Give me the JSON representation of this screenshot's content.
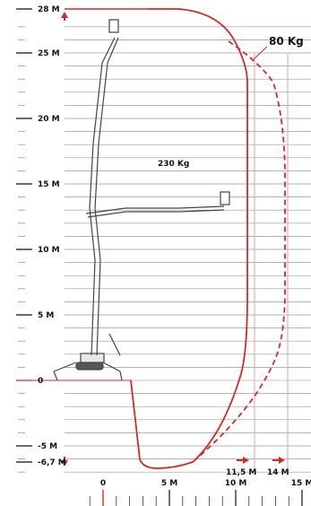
{
  "chart_data": {
    "type": "diagram",
    "y_ticks": [
      {
        "label": "28 M",
        "value": 28,
        "red_arrow": "up"
      },
      {
        "label": "25 M",
        "value": 25
      },
      {
        "label": "20 M",
        "value": 20
      },
      {
        "label": "15 M",
        "value": 15
      },
      {
        "label": "10 M",
        "value": 10
      },
      {
        "label": "5 M",
        "value": 5
      },
      {
        "label": "0",
        "value": 0,
        "red": true
      },
      {
        "label": "-5 M",
        "value": -5
      },
      {
        "label": "-6,7 M",
        "value": -6.7,
        "red_arrow": "down"
      }
    ],
    "x_ticks": [
      {
        "label": "0",
        "value": 0
      },
      {
        "label": "5 M",
        "value": 5
      },
      {
        "label": "10 M",
        "value": 10
      },
      {
        "label": "15 M",
        "value": 15
      }
    ],
    "reach_markers": [
      {
        "label": "11,5 M",
        "value": 11.5
      },
      {
        "label": "14 M",
        "value": 14
      }
    ],
    "load_labels": [
      {
        "text": "80 Kg",
        "envelope": "dashed"
      },
      {
        "text": "230 Kg",
        "envelope": "solid"
      }
    ],
    "colors": {
      "envelope": "#d42a2a",
      "grid": "#9a9a9a",
      "machine": "#444444"
    }
  }
}
